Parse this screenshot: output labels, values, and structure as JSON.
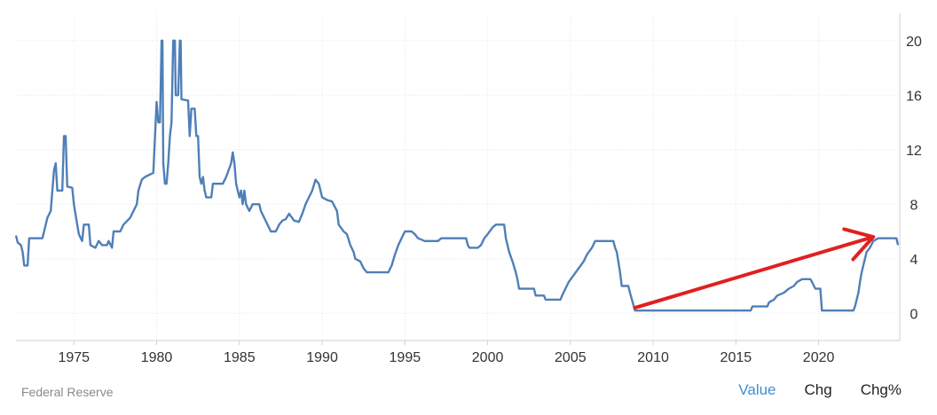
{
  "footer": {
    "source": "Federal Reserve",
    "tabs": [
      {
        "label": "Value",
        "active": true
      },
      {
        "label": "Chg",
        "active": false
      },
      {
        "label": "Chg%",
        "active": false
      }
    ]
  },
  "colors": {
    "line": "#4f7fb8",
    "arrow": "#e02020",
    "active_tab": "#3d8fd6",
    "grid": "#e6e6e6"
  },
  "chart_data": {
    "type": "line",
    "title": "",
    "xlabel": "",
    "ylabel": "",
    "xlim": [
      1971.5,
      2024.9
    ],
    "ylim": [
      -2,
      22
    ],
    "x_ticks": [
      1975,
      1980,
      1985,
      1990,
      1995,
      2000,
      2005,
      2010,
      2015,
      2020
    ],
    "y_ticks": [
      0,
      4,
      8,
      12,
      16,
      20
    ],
    "x_tick_labels": [
      "1975",
      "1980",
      "1985",
      "1990",
      "1995",
      "2000",
      "2005",
      "2010",
      "2015",
      "2020"
    ],
    "y_tick_labels": [
      "0",
      "4",
      "8",
      "12",
      "16",
      "20"
    ],
    "grid": true,
    "y_axis_side": "right",
    "series": [
      {
        "color": "#4f7fb8",
        "points": [
          [
            1971.5,
            5.7
          ],
          [
            1971.6,
            5.2
          ],
          [
            1971.8,
            5.0
          ],
          [
            1971.9,
            4.5
          ],
          [
            1972.0,
            3.5
          ],
          [
            1972.2,
            3.5
          ],
          [
            1972.3,
            5.5
          ],
          [
            1972.8,
            5.5
          ],
          [
            1973.1,
            5.5
          ],
          [
            1973.2,
            6.0
          ],
          [
            1973.4,
            7.0
          ],
          [
            1973.6,
            7.5
          ],
          [
            1973.7,
            9.0
          ],
          [
            1973.8,
            10.5
          ],
          [
            1973.9,
            11.0
          ],
          [
            1974.0,
            9.0
          ],
          [
            1974.3,
            9.0
          ],
          [
            1974.4,
            13.0
          ],
          [
            1974.5,
            13.0
          ],
          [
            1974.6,
            9.3
          ],
          [
            1974.9,
            9.2
          ],
          [
            1975.0,
            8.0
          ],
          [
            1975.2,
            6.5
          ],
          [
            1975.3,
            5.8
          ],
          [
            1975.5,
            5.3
          ],
          [
            1975.6,
            6.5
          ],
          [
            1975.9,
            6.5
          ],
          [
            1976.0,
            5.0
          ],
          [
            1976.3,
            4.8
          ],
          [
            1976.5,
            5.3
          ],
          [
            1976.7,
            5.0
          ],
          [
            1977.0,
            5.0
          ],
          [
            1977.1,
            5.3
          ],
          [
            1977.3,
            4.8
          ],
          [
            1977.4,
            6.0
          ],
          [
            1977.8,
            6.0
          ],
          [
            1978.0,
            6.5
          ],
          [
            1978.4,
            7.0
          ],
          [
            1978.8,
            8.0
          ],
          [
            1978.9,
            9.0
          ],
          [
            1979.1,
            9.8
          ],
          [
            1979.3,
            10.0
          ],
          [
            1979.8,
            10.3
          ],
          [
            1979.9,
            13.0
          ],
          [
            1980.0,
            15.5
          ],
          [
            1980.1,
            14.0
          ],
          [
            1980.2,
            14.0
          ],
          [
            1980.3,
            20.0
          ],
          [
            1980.35,
            20.0
          ],
          [
            1980.4,
            11.0
          ],
          [
            1980.5,
            9.5
          ],
          [
            1980.6,
            9.5
          ],
          [
            1980.7,
            11.0
          ],
          [
            1980.8,
            13.0
          ],
          [
            1980.9,
            14.0
          ],
          [
            1981.0,
            20.0
          ],
          [
            1981.1,
            20.0
          ],
          [
            1981.15,
            16.0
          ],
          [
            1981.3,
            16.0
          ],
          [
            1981.4,
            20.0
          ],
          [
            1981.45,
            20.0
          ],
          [
            1981.5,
            15.7
          ],
          [
            1981.9,
            15.6
          ],
          [
            1982.0,
            13.0
          ],
          [
            1982.1,
            15.0
          ],
          [
            1982.3,
            15.0
          ],
          [
            1982.4,
            13.0
          ],
          [
            1982.5,
            13.0
          ],
          [
            1982.6,
            10.0
          ],
          [
            1982.7,
            9.5
          ],
          [
            1982.8,
            10.0
          ],
          [
            1982.9,
            9.0
          ],
          [
            1983.0,
            8.5
          ],
          [
            1983.3,
            8.5
          ],
          [
            1983.4,
            9.5
          ],
          [
            1983.6,
            9.5
          ],
          [
            1983.8,
            9.5
          ],
          [
            1984.0,
            9.5
          ],
          [
            1984.2,
            10.0
          ],
          [
            1984.5,
            11.0
          ],
          [
            1984.6,
            11.8
          ],
          [
            1984.7,
            11.0
          ],
          [
            1984.8,
            9.5
          ],
          [
            1984.9,
            9.0
          ],
          [
            1985.0,
            8.5
          ],
          [
            1985.1,
            9.0
          ],
          [
            1985.2,
            8.0
          ],
          [
            1985.3,
            9.0
          ],
          [
            1985.4,
            8.0
          ],
          [
            1985.6,
            7.5
          ],
          [
            1985.8,
            8.0
          ],
          [
            1986.2,
            8.0
          ],
          [
            1986.3,
            7.5
          ],
          [
            1986.5,
            7.0
          ],
          [
            1986.7,
            6.5
          ],
          [
            1986.9,
            6.0
          ],
          [
            1987.2,
            6.0
          ],
          [
            1987.4,
            6.5
          ],
          [
            1987.6,
            6.8
          ],
          [
            1987.8,
            6.9
          ],
          [
            1988.0,
            7.3
          ],
          [
            1988.3,
            6.8
          ],
          [
            1988.6,
            6.7
          ],
          [
            1988.8,
            7.3
          ],
          [
            1989.0,
            8.0
          ],
          [
            1989.2,
            8.5
          ],
          [
            1989.4,
            9.0
          ],
          [
            1989.6,
            9.8
          ],
          [
            1989.8,
            9.5
          ],
          [
            1990.0,
            8.5
          ],
          [
            1990.3,
            8.3
          ],
          [
            1990.6,
            8.2
          ],
          [
            1990.9,
            7.5
          ],
          [
            1991.0,
            6.5
          ],
          [
            1991.3,
            6.0
          ],
          [
            1991.5,
            5.8
          ],
          [
            1991.7,
            5.0
          ],
          [
            1991.9,
            4.5
          ],
          [
            1992.0,
            4.0
          ],
          [
            1992.3,
            3.8
          ],
          [
            1992.5,
            3.3
          ],
          [
            1992.7,
            3.0
          ],
          [
            1993.0,
            3.0
          ],
          [
            1994.0,
            3.0
          ],
          [
            1994.2,
            3.5
          ],
          [
            1994.4,
            4.3
          ],
          [
            1994.6,
            5.0
          ],
          [
            1994.8,
            5.5
          ],
          [
            1995.0,
            6.0
          ],
          [
            1995.4,
            6.0
          ],
          [
            1995.6,
            5.8
          ],
          [
            1995.8,
            5.5
          ],
          [
            1996.2,
            5.3
          ],
          [
            1996.5,
            5.3
          ],
          [
            1997.0,
            5.3
          ],
          [
            1997.2,
            5.5
          ],
          [
            1998.0,
            5.5
          ],
          [
            1998.7,
            5.5
          ],
          [
            1998.8,
            5.0
          ],
          [
            1998.9,
            4.8
          ],
          [
            1999.4,
            4.8
          ],
          [
            1999.6,
            5.0
          ],
          [
            1999.8,
            5.5
          ],
          [
            2000.0,
            5.8
          ],
          [
            2000.3,
            6.3
          ],
          [
            2000.5,
            6.5
          ],
          [
            2001.0,
            6.5
          ],
          [
            2001.1,
            5.5
          ],
          [
            2001.3,
            4.5
          ],
          [
            2001.5,
            3.8
          ],
          [
            2001.7,
            3.0
          ],
          [
            2001.8,
            2.5
          ],
          [
            2001.9,
            1.8
          ],
          [
            2002.8,
            1.8
          ],
          [
            2002.9,
            1.3
          ],
          [
            2003.4,
            1.3
          ],
          [
            2003.5,
            1.0
          ],
          [
            2004.4,
            1.0
          ],
          [
            2004.5,
            1.3
          ],
          [
            2004.7,
            1.8
          ],
          [
            2004.9,
            2.3
          ],
          [
            2005.2,
            2.8
          ],
          [
            2005.5,
            3.3
          ],
          [
            2005.8,
            3.8
          ],
          [
            2006.0,
            4.3
          ],
          [
            2006.3,
            4.8
          ],
          [
            2006.5,
            5.3
          ],
          [
            2007.6,
            5.3
          ],
          [
            2007.7,
            4.8
          ],
          [
            2007.8,
            4.5
          ],
          [
            2008.0,
            3.0
          ],
          [
            2008.1,
            2.0
          ],
          [
            2008.5,
            2.0
          ],
          [
            2008.6,
            1.5
          ],
          [
            2008.9,
            0.2
          ],
          [
            2015.9,
            0.2
          ],
          [
            2016.0,
            0.5
          ],
          [
            2016.9,
            0.5
          ],
          [
            2017.0,
            0.8
          ],
          [
            2017.3,
            1.0
          ],
          [
            2017.5,
            1.3
          ],
          [
            2017.9,
            1.5
          ],
          [
            2018.2,
            1.8
          ],
          [
            2018.5,
            2.0
          ],
          [
            2018.7,
            2.3
          ],
          [
            2019.0,
            2.5
          ],
          [
            2019.5,
            2.5
          ],
          [
            2019.6,
            2.3
          ],
          [
            2019.8,
            1.8
          ],
          [
            2020.1,
            1.8
          ],
          [
            2020.2,
            0.2
          ],
          [
            2022.1,
            0.2
          ],
          [
            2022.2,
            0.5
          ],
          [
            2022.4,
            1.5
          ],
          [
            2022.5,
            2.3
          ],
          [
            2022.6,
            3.0
          ],
          [
            2022.8,
            4.0
          ],
          [
            2022.9,
            4.5
          ],
          [
            2023.1,
            4.8
          ],
          [
            2023.3,
            5.3
          ],
          [
            2023.6,
            5.5
          ],
          [
            2024.7,
            5.5
          ],
          [
            2024.8,
            5.0
          ]
        ]
      }
    ],
    "annotations": [
      {
        "type": "arrow",
        "color": "#e02020",
        "from": [
          2008.9,
          0.4
        ],
        "to": [
          2023.3,
          5.6
        ]
      }
    ]
  }
}
